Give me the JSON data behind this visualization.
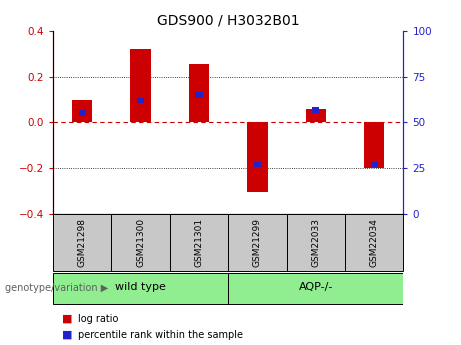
{
  "title": "GDS900 / H3032B01",
  "samples": [
    "GSM21298",
    "GSM21300",
    "GSM21301",
    "GSM21299",
    "GSM22033",
    "GSM22034"
  ],
  "log_ratio": [
    0.1,
    0.32,
    0.255,
    -0.305,
    0.06,
    -0.2
  ],
  "percentile_rank": [
    55,
    62,
    65,
    27,
    57,
    27
  ],
  "group1_indices": [
    0,
    1,
    2
  ],
  "group2_indices": [
    3,
    4,
    5
  ],
  "group1_label": "wild type",
  "group2_label": "AQP-/-",
  "group_label_prefix": "genotype/variation",
  "ylim_left": [
    -0.4,
    0.4
  ],
  "ylim_right": [
    0,
    100
  ],
  "yticks_left": [
    -0.4,
    -0.2,
    0.0,
    0.2,
    0.4
  ],
  "yticks_right": [
    0,
    25,
    50,
    75,
    100
  ],
  "bar_color_red": "#CC0000",
  "bar_color_blue": "#2222CC",
  "bar_width": 0.35,
  "pct_bar_width": 0.12,
  "pct_bar_height": 0.025,
  "sample_box_color": "#C8C8C8",
  "group_box_color": "#90EE90",
  "legend_items": [
    "log ratio",
    "percentile rank within the sample"
  ]
}
